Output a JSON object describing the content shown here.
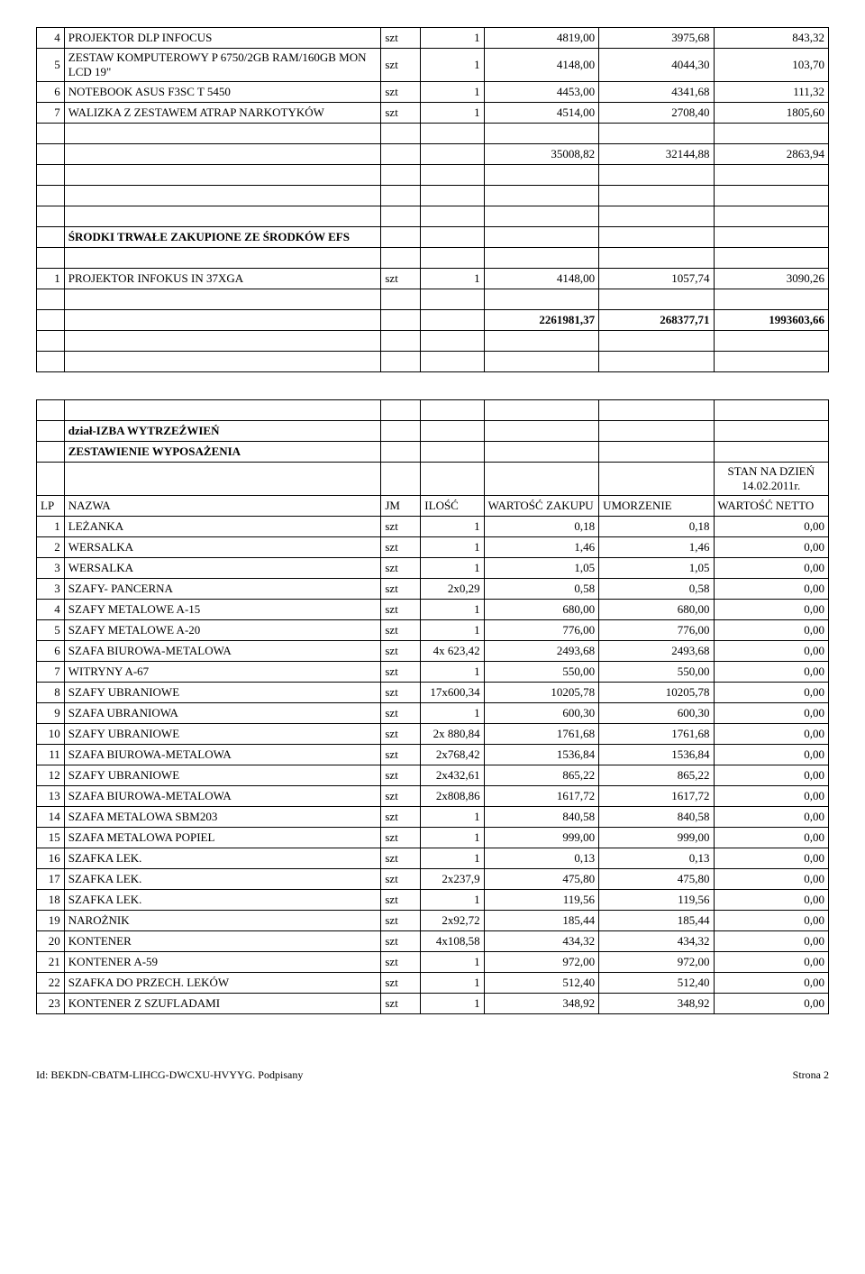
{
  "top_rows": [
    {
      "lp": "4",
      "name": "PROJEKTOR DLP INFOCUS",
      "jm": "szt",
      "qty": "1",
      "val": "4819,00",
      "umo": "3975,68",
      "net": "843,32"
    },
    {
      "lp": "5",
      "name": "ZESTAW KOMPUTEROWY P 6750/2GB RAM/160GB MON LCD 19\"",
      "jm": "szt",
      "qty": "1",
      "val": "4148,00",
      "umo": "4044,30",
      "net": "103,70"
    },
    {
      "lp": "6",
      "name": "NOTEBOOK ASUS F3SC T 5450",
      "jm": "szt",
      "qty": "1",
      "val": "4453,00",
      "umo": "4341,68",
      "net": "111,32"
    },
    {
      "lp": "7",
      "name": "WALIZKA Z ZESTAWEM ATRAP NARKOTYKÓW",
      "jm": "szt",
      "qty": "1",
      "val": "4514,00",
      "umo": "2708,40",
      "net": "1805,60"
    }
  ],
  "top_total": {
    "val": "35008,82",
    "umo": "32144,88",
    "net": "2863,94"
  },
  "section_efs_title": "ŚRODKI TRWAŁE ZAKUPIONE ZE ŚRODKÓW EFS",
  "efs_rows": [
    {
      "lp": "1",
      "name": "PROJEKTOR INFOKUS IN 37XGA",
      "jm": "szt",
      "qty": "1",
      "val": "4148,00",
      "umo": "1057,74",
      "net": "3090,26"
    }
  ],
  "grand_total": {
    "val": "2261981,37",
    "umo": "268377,71",
    "net": "1993603,66"
  },
  "section2_title": "dział-IZBA WYTRZEŹWIEŃ",
  "section2_subtitle": "ZESTAWIENIE WYPOSAŻENIA",
  "stan_na": "STAN NA DZIEŃ 14.02.2011r.",
  "header": {
    "lp": "LP",
    "name": "NAZWA",
    "jm": "JM",
    "qty": "ILOŚĆ",
    "val": "WARTOŚĆ ZAKUPU",
    "umo": "UMORZENIE",
    "net": "WARTOŚĆ NETTO"
  },
  "rows": [
    {
      "lp": "1",
      "name": "LEŻANKA",
      "jm": "szt",
      "qty": "1",
      "val": "0,18",
      "umo": "0,18",
      "net": "0,00"
    },
    {
      "lp": "2",
      "name": "WERSALKA",
      "jm": "szt",
      "qty": "1",
      "val": "1,46",
      "umo": "1,46",
      "net": "0,00"
    },
    {
      "lp": "3",
      "name": "WERSALKA",
      "jm": "szt",
      "qty": "1",
      "val": "1,05",
      "umo": "1,05",
      "net": "0,00"
    },
    {
      "lp": "3",
      "name": "SZAFY- PANCERNA",
      "jm": "szt",
      "qty": "2x0,29",
      "val": "0,58",
      "umo": "0,58",
      "net": "0,00"
    },
    {
      "lp": "4",
      "name": "SZAFY METALOWE A-15",
      "jm": "szt",
      "qty": "1",
      "val": "680,00",
      "umo": "680,00",
      "net": "0,00"
    },
    {
      "lp": "5",
      "name": "SZAFY METALOWE A-20",
      "jm": "szt",
      "qty": "1",
      "val": "776,00",
      "umo": "776,00",
      "net": "0,00"
    },
    {
      "lp": "6",
      "name": "SZAFA BIUROWA-METALOWA",
      "jm": "szt",
      "qty": "4x 623,42",
      "val": "2493,68",
      "umo": "2493,68",
      "net": "0,00"
    },
    {
      "lp": "7",
      "name": "WITRYNY A-67",
      "jm": "szt",
      "qty": "1",
      "val": "550,00",
      "umo": "550,00",
      "net": "0,00"
    },
    {
      "lp": "8",
      "name": "SZAFY UBRANIOWE",
      "jm": "szt",
      "qty": "17x600,34",
      "val": "10205,78",
      "umo": "10205,78",
      "net": "0,00"
    },
    {
      "lp": "9",
      "name": "SZAFA UBRANIOWA",
      "jm": "szt",
      "qty": "1",
      "val": "600,30",
      "umo": "600,30",
      "net": "0,00"
    },
    {
      "lp": "10",
      "name": "SZAFY UBRANIOWE",
      "jm": "szt",
      "qty": "2x 880,84",
      "val": "1761,68",
      "umo": "1761,68",
      "net": "0,00"
    },
    {
      "lp": "11",
      "name": "SZAFA BIUROWA-METALOWA",
      "jm": "szt",
      "qty": "2x768,42",
      "val": "1536,84",
      "umo": "1536,84",
      "net": "0,00"
    },
    {
      "lp": "12",
      "name": "SZAFY UBRANIOWE",
      "jm": "szt",
      "qty": "2x432,61",
      "val": "865,22",
      "umo": "865,22",
      "net": "0,00"
    },
    {
      "lp": "13",
      "name": "SZAFA BIUROWA-METALOWA",
      "jm": "szt",
      "qty": "2x808,86",
      "val": "1617,72",
      "umo": "1617,72",
      "net": "0,00"
    },
    {
      "lp": "14",
      "name": "SZAFA METALOWA SBM203",
      "jm": "szt",
      "qty": "1",
      "val": "840,58",
      "umo": "840,58",
      "net": "0,00"
    },
    {
      "lp": "15",
      "name": "SZAFA METALOWA POPIEL",
      "jm": "szt",
      "qty": "1",
      "val": "999,00",
      "umo": "999,00",
      "net": "0,00"
    },
    {
      "lp": "16",
      "name": "SZAFKA LEK.",
      "jm": "szt",
      "qty": "1",
      "val": "0,13",
      "umo": "0,13",
      "net": "0,00"
    },
    {
      "lp": "17",
      "name": "SZAFKA LEK.",
      "jm": "szt",
      "qty": "2x237,9",
      "val": "475,80",
      "umo": "475,80",
      "net": "0,00"
    },
    {
      "lp": "18",
      "name": "SZAFKA LEK.",
      "jm": "szt",
      "qty": "1",
      "val": "119,56",
      "umo": "119,56",
      "net": "0,00"
    },
    {
      "lp": "19",
      "name": "NAROŻNIK",
      "jm": "szt",
      "qty": "2x92,72",
      "val": "185,44",
      "umo": "185,44",
      "net": "0,00"
    },
    {
      "lp": "20",
      "name": "KONTENER",
      "jm": "szt",
      "qty": "4x108,58",
      "val": "434,32",
      "umo": "434,32",
      "net": "0,00"
    },
    {
      "lp": "21",
      "name": "KONTENER A-59",
      "jm": "szt",
      "qty": "1",
      "val": "972,00",
      "umo": "972,00",
      "net": "0,00"
    },
    {
      "lp": "22",
      "name": "SZAFKA DO PRZECH. LEKÓW",
      "jm": "szt",
      "qty": "1",
      "val": "512,40",
      "umo": "512,40",
      "net": "0,00"
    },
    {
      "lp": "23",
      "name": "KONTENER Z SZUFLADAMI",
      "jm": "szt",
      "qty": "1",
      "val": "348,92",
      "umo": "348,92",
      "net": "0,00"
    }
  ],
  "footer_left": "Id: BEKDN-CBATM-LIHCG-DWCXU-HVYYG. Podpisany",
  "footer_right": "Strona 2"
}
